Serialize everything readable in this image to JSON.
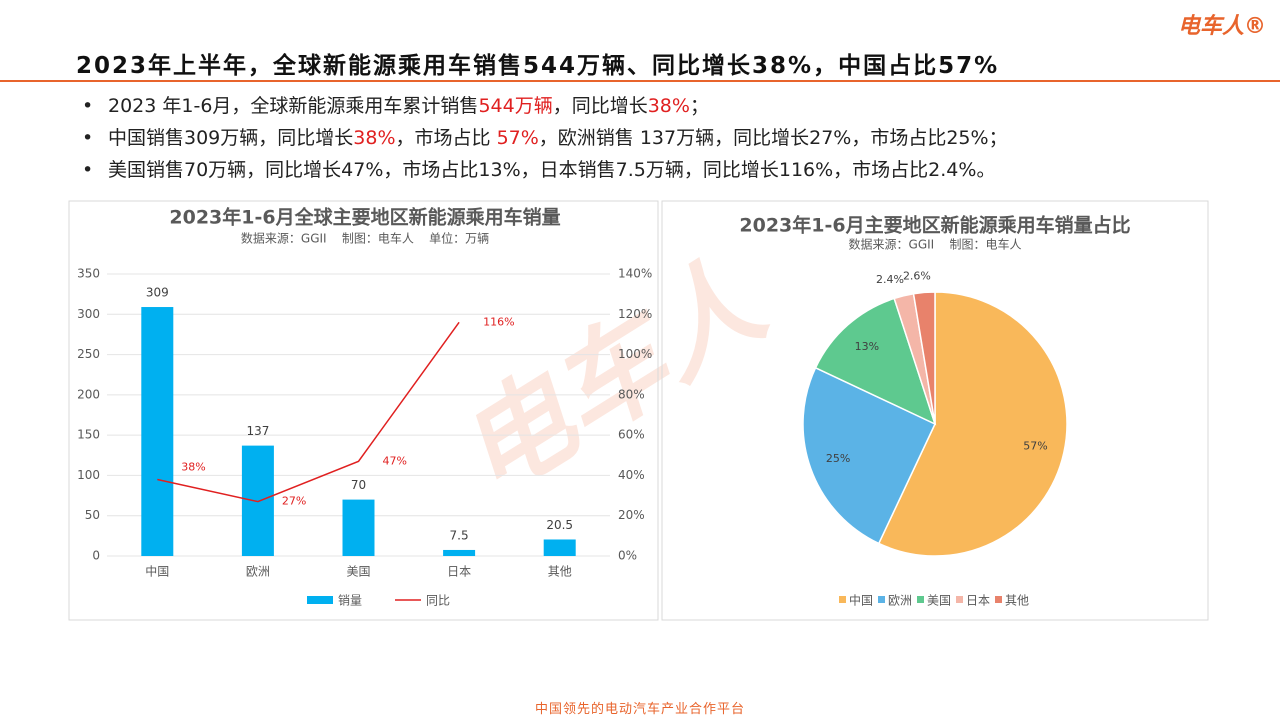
{
  "logo": "电车人®",
  "header": {
    "title": "2023年上半年，全球新能源乘用车销售544万辆、同比增长38%，中国占比57%"
  },
  "bullets": [
    [
      {
        "text": "2023 年1-6月，全球新能源乘用车累计销售"
      },
      {
        "text": "544万辆",
        "color": "#e02020"
      },
      {
        "text": "，同比增长"
      },
      {
        "text": "38%",
        "color": "#e02020"
      },
      {
        "text": "；"
      }
    ],
    [
      {
        "text": "中国销售309万辆，同比增长"
      },
      {
        "text": "38%",
        "color": "#e02020"
      },
      {
        "text": "，市场占比 "
      },
      {
        "text": "57%",
        "color": "#e02020"
      },
      {
        "text": "，欧洲销售 137万辆，同比增长27%，市场占比25%；"
      }
    ],
    [
      {
        "text": "美国销售70万辆，同比增长47%，市场占比13%，日本销售7.5万辆，同比增长116%，市场占比2.4%。"
      }
    ]
  ],
  "watermark": "电车人",
  "footer": "中国领先的电动汽车产业合作平台",
  "chart_data": [
    {
      "type": "bar",
      "title": "2023年1-6月全球主要地区新能源乘用车销量",
      "subtitle": "数据来源：GGII    制图：电车人    单位：万辆",
      "categories": [
        "中国",
        "欧洲",
        "美国",
        "日本",
        "其他"
      ],
      "series": [
        {
          "name": "销量",
          "color": "#00b0f0",
          "values": [
            309,
            137,
            70,
            7.5,
            20.5
          ]
        },
        {
          "name": "同比",
          "color": "#e02020",
          "axis": "y2",
          "values": [
            38,
            27,
            47,
            116,
            null
          ],
          "value_labels": [
            "38%",
            "27%",
            "47%",
            "116%",
            null
          ]
        }
      ],
      "ylim": [
        0,
        350
      ],
      "yticks": [
        0,
        50,
        100,
        150,
        200,
        250,
        300,
        350
      ],
      "y2lim": [
        0,
        140
      ],
      "y2ticks": [
        {
          "value": 0,
          "label": "0%"
        },
        {
          "value": 20,
          "label": "20%"
        },
        {
          "value": 40,
          "label": "40%"
        },
        {
          "value": 60,
          "label": "60%"
        },
        {
          "value": 80,
          "label": "80%"
        },
        {
          "value": 100,
          "label": "100%"
        },
        {
          "value": 120,
          "label": "120%"
        },
        {
          "value": 140,
          "label": "140%"
        }
      ],
      "grid": true,
      "legend": "bottom"
    },
    {
      "type": "pie",
      "title": "2023年1-6月主要地区新能源乘用车销量占比",
      "subtitle": "数据来源：GGII    制图：电车人",
      "categories": [
        "中国",
        "欧洲",
        "美国",
        "日本",
        "其他"
      ],
      "values": [
        57,
        25,
        13,
        2.4,
        2.6
      ],
      "value_labels": [
        "57%",
        "25%",
        "13%",
        "2.4%",
        "2.6%"
      ],
      "colors": [
        "#f9b85a",
        "#5bb3e6",
        "#5ec98f",
        "#f4b6a8",
        "#e8826b"
      ],
      "legend": "bottom"
    }
  ]
}
